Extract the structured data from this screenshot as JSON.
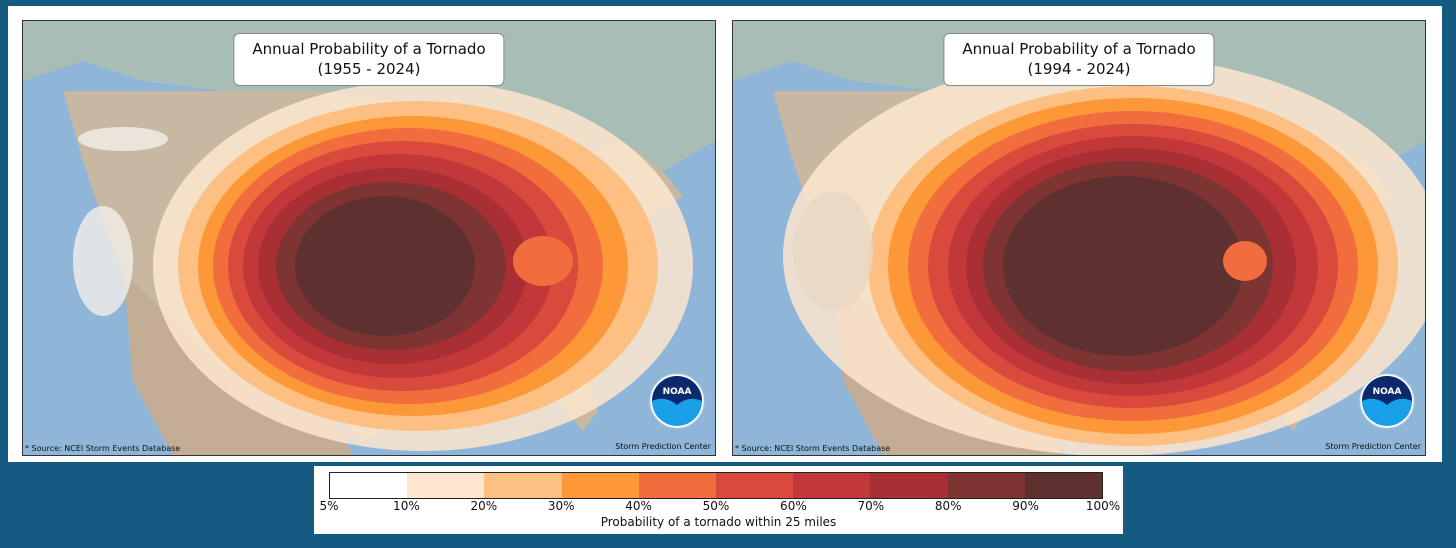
{
  "maps": [
    {
      "title_line1": "Annual Probability of a Tornado",
      "title_line2": "(1955 - 2024)",
      "source": "* Source: NCEI Storm Events Database",
      "credit": "Storm Prediction Center",
      "logo_text": "NOAA"
    },
    {
      "title_line1": "Annual Probability of a Tornado",
      "title_line2": "(1994 - 2024)",
      "source": "* Source: NCEI Storm Events Database",
      "credit": "Storm Prediction Center",
      "logo_text": "NOAA"
    }
  ],
  "legend": {
    "caption": "Probability of a tornado within 25 miles",
    "ticks": [
      "5%",
      "10%",
      "20%",
      "30%",
      "40%",
      "50%",
      "60%",
      "70%",
      "80%",
      "90%",
      "100%"
    ],
    "colors": [
      "#ffffff",
      "#fde6cf",
      "#fdbf82",
      "#fd9838",
      "#f26d3d",
      "#d94a3c",
      "#c2383a",
      "#a82f33",
      "#7d3432",
      "#5e3130"
    ]
  },
  "colors": {
    "background": "#155a80",
    "ocean": "#8fb6d8",
    "land": "#c8b8a2",
    "canada": "#a9bdb7"
  }
}
